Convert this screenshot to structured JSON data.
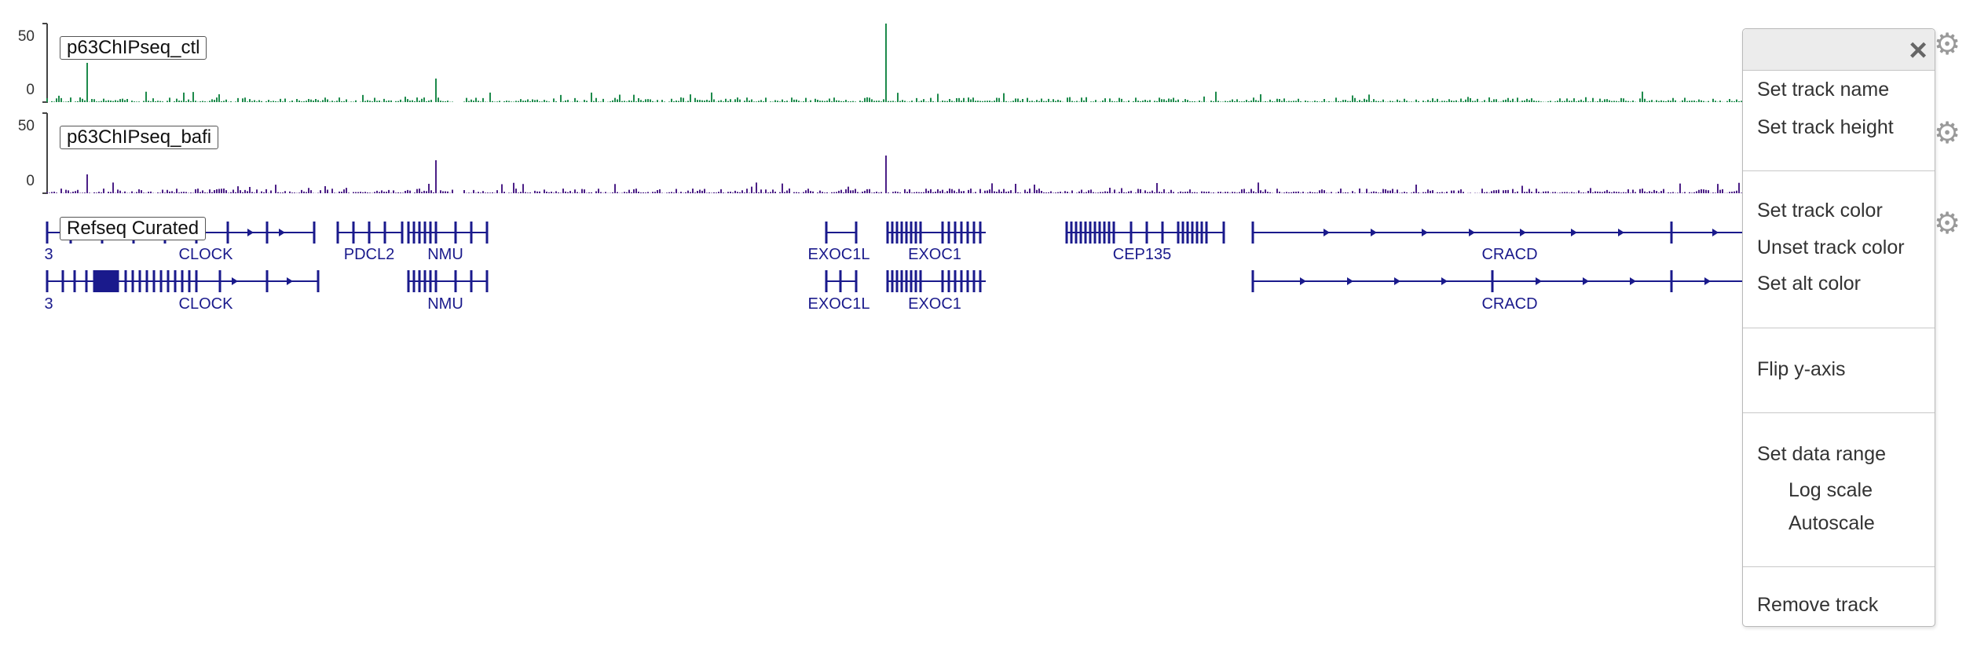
{
  "tracks": [
    {
      "name": "p63ChIPseq_ctl",
      "color": "#1d8a4b",
      "data_range": {
        "min": "0",
        "max": "50"
      }
    },
    {
      "name": "p63ChIPseq_bafi",
      "color": "#4b1f86",
      "data_range": {
        "min": "0",
        "max": "50"
      }
    },
    {
      "name": "Refseq Curated",
      "color": "#1a1a8c"
    }
  ],
  "genes": {
    "row1": [
      "3",
      "CLOCK",
      "PDCL2",
      "NMU",
      "EXOC1L",
      "EXOC1",
      "CEP135",
      "CRACD"
    ],
    "row2": [
      "3",
      "CLOCK",
      "NMU",
      "EXOC1L",
      "EXOC1",
      "CRACD"
    ]
  },
  "icons": {
    "gear": "gear-icon",
    "close": "close-icon"
  },
  "menu": {
    "close_glyph": "×",
    "items": [
      "Set track name",
      "Set track height",
      "Set track color",
      "Unset track color",
      "Set alt color",
      "Flip y-axis",
      "Set data range",
      "Log scale",
      "Autoscale",
      "Remove track"
    ]
  }
}
